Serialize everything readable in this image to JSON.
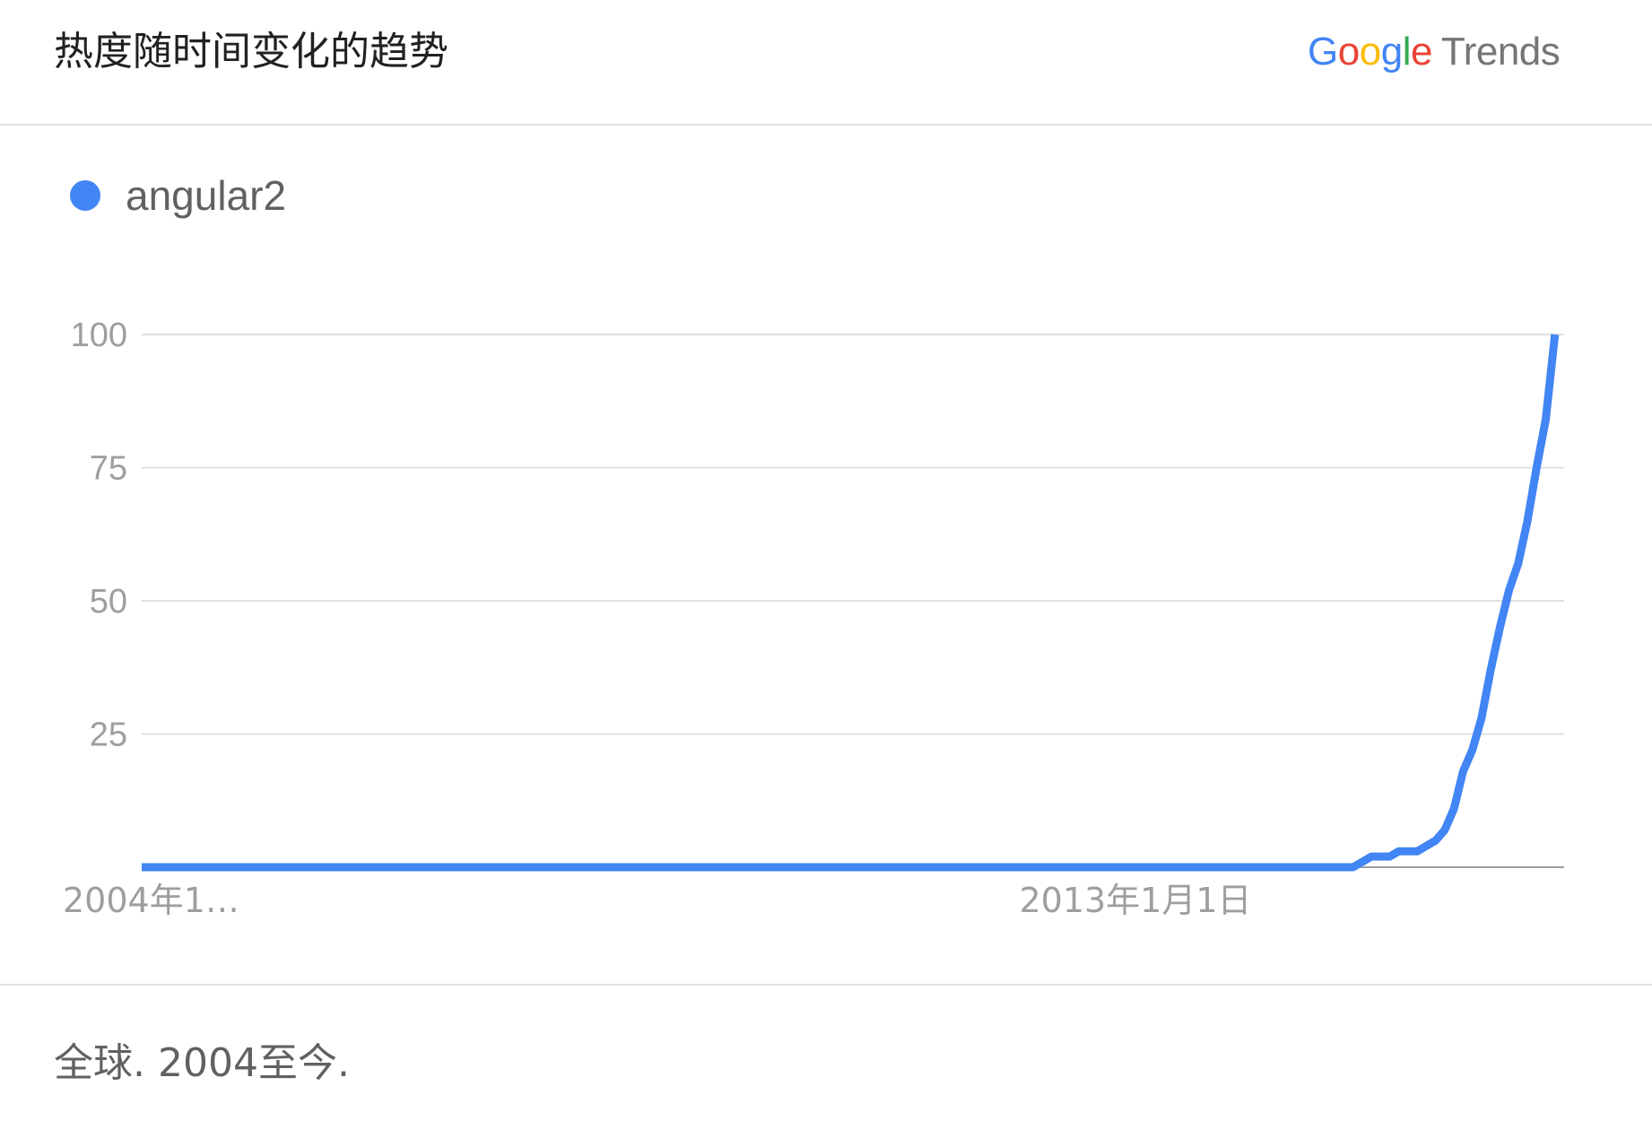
{
  "header": {
    "title": "热度随时间变化的趋势",
    "logo": {
      "letters": [
        "G",
        "o",
        "o",
        "g",
        "l",
        "e"
      ],
      "letter_colors": [
        "#4285F4",
        "#EA4335",
        "#FBBC05",
        "#4285F4",
        "#34A853",
        "#EA4335"
      ],
      "trends_label": "Trends"
    }
  },
  "legend": {
    "label": "angular2",
    "color": "#4285F4"
  },
  "footer": {
    "text": "全球. 2004至今."
  },
  "chart_data": {
    "type": "line",
    "title": "热度随时间变化的趋势",
    "xlabel": "",
    "ylabel": "",
    "ylim": [
      0,
      100
    ],
    "yticks": [
      25,
      50,
      75,
      100
    ],
    "xtick_labels": [
      "2004年1…",
      "2013年1月1日"
    ],
    "x_range": [
      "2004-01",
      "2016-12"
    ],
    "grid": true,
    "legend_position": "top-left",
    "series": [
      {
        "name": "angular2",
        "color": "#4285F4",
        "points": [
          [
            "2004-01",
            0
          ],
          [
            "2005-01",
            0
          ],
          [
            "2006-01",
            0
          ],
          [
            "2007-01",
            0
          ],
          [
            "2008-01",
            0
          ],
          [
            "2009-01",
            0
          ],
          [
            "2010-01",
            0
          ],
          [
            "2011-01",
            0
          ],
          [
            "2012-01",
            0
          ],
          [
            "2013-01",
            0
          ],
          [
            "2014-01",
            0
          ],
          [
            "2014-12",
            0
          ],
          [
            "2015-01",
            0
          ],
          [
            "2015-02",
            1
          ],
          [
            "2015-03",
            2
          ],
          [
            "2015-04",
            2
          ],
          [
            "2015-05",
            2
          ],
          [
            "2015-06",
            3
          ],
          [
            "2015-07",
            3
          ],
          [
            "2015-08",
            3
          ],
          [
            "2015-09",
            4
          ],
          [
            "2015-10",
            5
          ],
          [
            "2015-11",
            7
          ],
          [
            "2015-12",
            11
          ],
          [
            "2016-01",
            18
          ],
          [
            "2016-02",
            22
          ],
          [
            "2016-03",
            28
          ],
          [
            "2016-04",
            37
          ],
          [
            "2016-05",
            45
          ],
          [
            "2016-06",
            52
          ],
          [
            "2016-07",
            57
          ],
          [
            "2016-08",
            65
          ],
          [
            "2016-09",
            75
          ],
          [
            "2016-10",
            84
          ],
          [
            "2016-11",
            100
          ]
        ]
      }
    ]
  }
}
